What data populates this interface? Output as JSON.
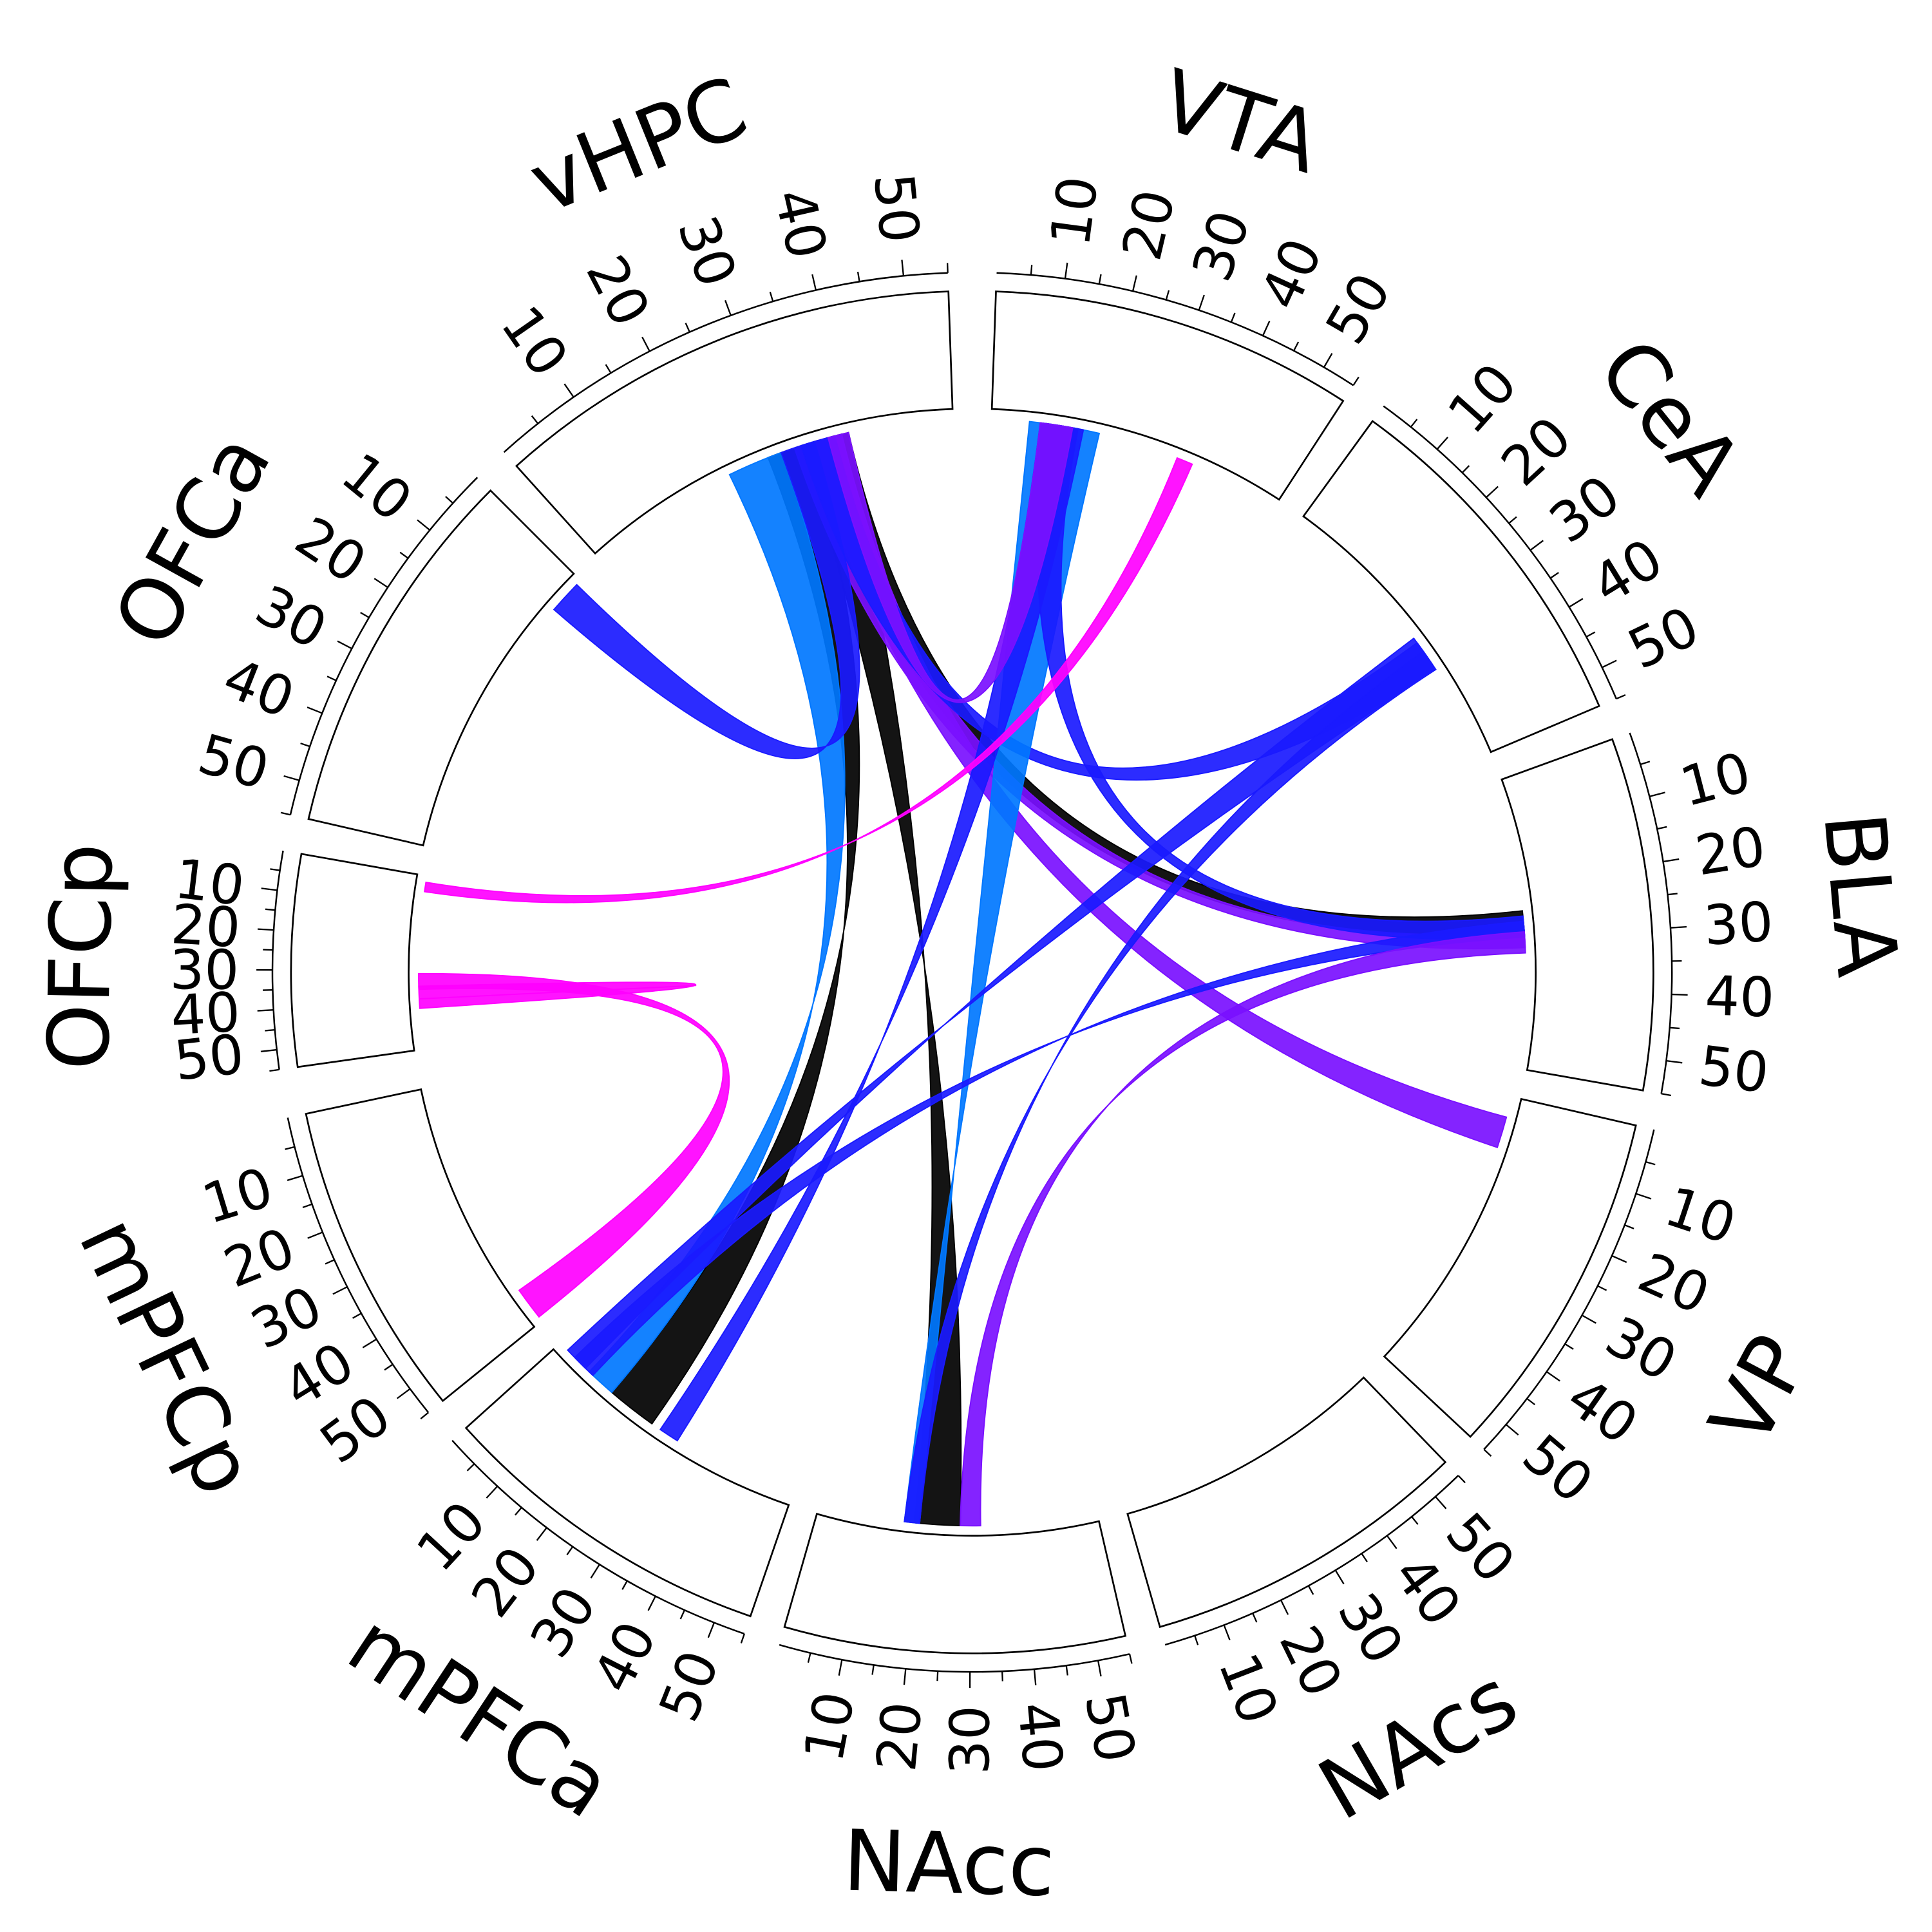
{
  "chart_data": {
    "type": "chord",
    "title": "",
    "regions": [
      {
        "name": "VTA",
        "ticks": [
          "10",
          "20",
          "30",
          "40",
          "50"
        ]
      },
      {
        "name": "CeA",
        "ticks": [
          "10",
          "20",
          "30",
          "40",
          "50"
        ]
      },
      {
        "name": "BLA",
        "ticks": [
          "10",
          "20",
          "30",
          "40",
          "50"
        ]
      },
      {
        "name": "VP",
        "ticks": [
          "10",
          "20",
          "30",
          "40",
          "50"
        ]
      },
      {
        "name": "NAcs",
        "ticks": [
          "10",
          "20",
          "30",
          "40",
          "50"
        ]
      },
      {
        "name": "NAcc",
        "ticks": [
          "10",
          "20",
          "30",
          "40",
          "50"
        ]
      },
      {
        "name": "mPFCa",
        "ticks": [
          "10",
          "20",
          "30",
          "40",
          "50"
        ]
      },
      {
        "name": "mPFCp",
        "ticks": [
          "10",
          "20",
          "30",
          "40",
          "50"
        ]
      },
      {
        "name": "OFCp",
        "ticks": [
          "10",
          "20",
          "30",
          "40",
          "50"
        ]
      },
      {
        "name": "OFCa",
        "ticks": [
          "10",
          "20",
          "30",
          "40",
          "50"
        ]
      },
      {
        "name": "vHPC",
        "ticks": [
          "10",
          "20",
          "30",
          "40",
          "50"
        ]
      }
    ],
    "axis_range": [
      0,
      55
    ],
    "colors": {
      "blue": "#1a1aff",
      "azure": "#0077ff",
      "violet": "#7a10ff",
      "magenta": "#ff00ff",
      "black": "#000000"
    },
    "connections": [
      {
        "from": "vHPC",
        "from_range": [
          33,
          39
        ],
        "to": "NAcc",
        "to_range": [
          19,
          28
        ],
        "color": "black"
      },
      {
        "from": "vHPC",
        "from_range": [
          28,
          34
        ],
        "to": "mPFCa",
        "to_range": [
          14,
          24
        ],
        "color": "black"
      },
      {
        "from": "vHPC",
        "from_range": [
          22,
          30
        ],
        "to": "mPFCa",
        "to_range": [
          8,
          14
        ],
        "color": "azure"
      },
      {
        "from": "vHPC",
        "from_range": [
          34,
          40
        ],
        "to": "BLA",
        "to_range": [
          25,
          29
        ],
        "color": "black"
      },
      {
        "from": "vHPC",
        "from_range": [
          32,
          37
        ],
        "to": "BLA",
        "to_range": [
          29,
          32
        ],
        "color": "violet"
      },
      {
        "from": "vHPC",
        "from_range": [
          34,
          39
        ],
        "to": "VP",
        "to_range": [
          4,
          10
        ],
        "color": "violet"
      },
      {
        "from": "vHPC",
        "from_range": [
          30,
          35
        ],
        "to": "OFCa",
        "to_range": [
          1,
          7
        ],
        "color": "blue"
      },
      {
        "from": "vHPC",
        "from_range": [
          33,
          38
        ],
        "to": "CeA",
        "to_range": [
          31,
          37
        ],
        "color": "blue"
      },
      {
        "from": "VTA",
        "from_range": [
          7,
          20
        ],
        "to": "NAcc",
        "to_range": [
          17,
          20
        ],
        "color": "azure"
      },
      {
        "from": "VTA",
        "from_range": [
          9,
          17
        ],
        "to": "mPFCa",
        "to_range": [
          26,
          30
        ],
        "color": "blue"
      },
      {
        "from": "VTA",
        "from_range": [
          10,
          16
        ],
        "to": "BLA",
        "to_range": [
          26,
          30
        ],
        "color": "blue"
      },
      {
        "from": "VTA",
        "from_range": [
          9,
          15
        ],
        "to": "vHPC",
        "to_range": [
          37,
          40
        ],
        "color": "violet"
      },
      {
        "from": "VTA",
        "from_range": [
          35,
          38
        ],
        "to": "OFCp",
        "to_range": [
          2,
          5
        ],
        "color": "magenta"
      },
      {
        "from": "OFCp",
        "from_range": [
          31,
          36
        ],
        "to": "mPFCp",
        "to_range": [
          47,
          54
        ],
        "color": "magenta"
      },
      {
        "from": "OFCp",
        "from_range": [
          35,
          39
        ],
        "to": "OFCp",
        "to_range": [
          39,
          42
        ],
        "color": "magenta"
      },
      {
        "from": "CeA",
        "from_range": [
          30,
          37
        ],
        "to": "mPFCa",
        "to_range": [
          2,
          7
        ],
        "color": "blue"
      },
      {
        "from": "CeA",
        "from_range": [
          33,
          37
        ],
        "to": "NAcc",
        "to_range": [
          17,
          20
        ],
        "color": "blue"
      },
      {
        "from": "BLA",
        "from_range": [
          27,
          30
        ],
        "to": "mPFCa",
        "to_range": [
          4,
          9
        ],
        "color": "blue"
      },
      {
        "from": "NAcc",
        "from_range": [
          28,
          32
        ],
        "to": "BLA",
        "to_range": [
          29,
          33
        ],
        "color": "violet"
      }
    ]
  }
}
